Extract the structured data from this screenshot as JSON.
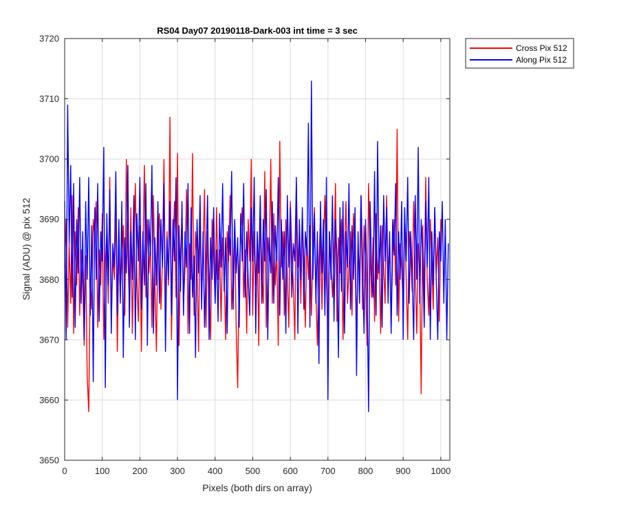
{
  "chart_data": {
    "type": "line",
    "title": "RS04 Day07 20190118-Dark-003 int time = 3 sec",
    "xlabel": "Pixels (both dirs on array)",
    "ylabel": "Signal (ADU) @ pix 512",
    "xlim": [
      0,
      1024
    ],
    "ylim": [
      3650,
      3720
    ],
    "xticks": [
      0,
      100,
      200,
      300,
      400,
      500,
      600,
      700,
      800,
      900,
      1000
    ],
    "yticks": [
      3650,
      3660,
      3670,
      3680,
      3690,
      3700,
      3710,
      3720
    ],
    "grid": true,
    "legend_position": "outside-top-right",
    "series": [
      {
        "name": "Cross Pix 512",
        "color": "#ff0000",
        "x_start": 0,
        "x_step": 4,
        "values": [
          3682,
          3690,
          3672,
          3686,
          3676,
          3694,
          3671,
          3688,
          3679,
          3692,
          3674,
          3685,
          3680,
          3669,
          3684,
          3664,
          3658,
          3680,
          3675,
          3690,
          3687,
          3693,
          3672,
          3685,
          3679,
          3691,
          3670,
          3683,
          3688,
          3676,
          3697,
          3673,
          3684,
          3680,
          3692,
          3668,
          3686,
          3678,
          3683,
          3689,
          3674,
          3700,
          3684,
          3677,
          3692,
          3671,
          3685,
          3696,
          3680,
          3673,
          3689,
          3668,
          3684,
          3699,
          3677,
          3690,
          3681,
          3686,
          3672,
          3694,
          3679,
          3668,
          3687,
          3691,
          3675,
          3683,
          3700,
          3674,
          3688,
          3679,
          3707,
          3670,
          3685,
          3693,
          3677,
          3701,
          3669,
          3684,
          3690,
          3676,
          3682,
          3695,
          3671,
          3686,
          3680,
          3701,
          3674,
          3688,
          3683,
          3668,
          3692,
          3677,
          3685,
          3695,
          3672,
          3688,
          3680,
          3670,
          3690,
          3684,
          3676,
          3692,
          3680,
          3685,
          3673,
          3687,
          3681,
          3670,
          3688,
          3683,
          3694,
          3675,
          3681,
          3689,
          3672,
          3662,
          3682,
          3687,
          3692,
          3677,
          3685,
          3671,
          3690,
          3683,
          3700,
          3674,
          3688,
          3679,
          3686,
          3669,
          3693,
          3681,
          3676,
          3698,
          3672,
          3687,
          3683,
          3700,
          3676,
          3691,
          3679,
          3685,
          3669,
          3703,
          3682,
          3688,
          3674,
          3690,
          3680,
          3672,
          3693,
          3685,
          3679,
          3670,
          3696,
          3682,
          3688,
          3676,
          3691,
          3683,
          3672,
          3687,
          3680,
          3689,
          3674,
          3685,
          3692,
          3678,
          3669,
          3683,
          3690,
          3675,
          3686,
          3694,
          3680,
          3671,
          3688,
          3683,
          3677,
          3684,
          3696,
          3673,
          3687,
          3681,
          3690,
          3670,
          3685,
          3693,
          3676,
          3682,
          3688,
          3674,
          3691,
          3683,
          3672,
          3686,
          3680,
          3694,
          3675,
          3689,
          3681,
          3669,
          3696,
          3684,
          3677,
          3687,
          3673,
          3691,
          3680,
          3685,
          3671,
          3689,
          3682,
          3676,
          3694,
          3680,
          3687,
          3672,
          3684,
          3690,
          3679,
          3705,
          3673,
          3686,
          3682,
          3676,
          3691,
          3680,
          3670,
          3688,
          3684,
          3678,
          3693,
          3682,
          3671,
          3686,
          3681,
          3661,
          3689,
          3677,
          3697,
          3680,
          3674,
          3690,
          3683,
          3675,
          3692,
          3681,
          3687,
          3673,
          3690
        ]
      },
      {
        "name": "Along Pix 512",
        "color": "#0000ff",
        "x_start": 0,
        "x_step": 4,
        "values": [
          3693,
          3670,
          3709,
          3686,
          3699,
          3677,
          3696,
          3672,
          3690,
          3681,
          3697,
          3676,
          3688,
          3670,
          3693,
          3680,
          3697,
          3674,
          3689,
          3663,
          3692,
          3680,
          3696,
          3673,
          3688,
          3683,
          3702,
          3662,
          3691,
          3679,
          3695,
          3671,
          3686,
          3682,
          3698,
          3674,
          3690,
          3676,
          3693,
          3667,
          3687,
          3681,
          3699,
          3672,
          3688,
          3680,
          3694,
          3670,
          3691,
          3683,
          3697,
          3675,
          3688,
          3679,
          3696,
          3669,
          3690,
          3684,
          3699,
          3671,
          3687,
          3679,
          3693,
          3676,
          3690,
          3682,
          3696,
          3668,
          3687,
          3680,
          3693,
          3674,
          3690,
          3683,
          3697,
          3660,
          3689,
          3678,
          3693,
          3674,
          3688,
          3682,
          3696,
          3671,
          3692,
          3677,
          3684,
          3667,
          3690,
          3681,
          3694,
          3675,
          3688,
          3672,
          3683,
          3694,
          3670,
          3687,
          3680,
          3692,
          3676,
          3685,
          3673,
          3691,
          3682,
          3696,
          3678,
          3687,
          3671,
          3689,
          3684,
          3698,
          3675,
          3690,
          3681,
          3687,
          3672,
          3691,
          3683,
          3696,
          3677,
          3688,
          3680,
          3674,
          3692,
          3683,
          3697,
          3671,
          3688,
          3681,
          3694,
          3676,
          3690,
          3683,
          3695,
          3670,
          3687,
          3681,
          3693,
          3676,
          3689,
          3683,
          3697,
          3674,
          3690,
          3680,
          3688,
          3671,
          3694,
          3682,
          3692,
          3677,
          3686,
          3683,
          3697,
          3671,
          3690,
          3680,
          3692,
          3675,
          3688,
          3684,
          3706,
          3672,
          3713,
          3680,
          3691,
          3676,
          3688,
          3666,
          3693,
          3681,
          3690,
          3674,
          3697,
          3660,
          3688,
          3680,
          3694,
          3673,
          3690,
          3684,
          3667,
          3692,
          3678,
          3693,
          3671,
          3688,
          3682,
          3696,
          3675,
          3689,
          3680,
          3692,
          3664,
          3688,
          3676,
          3694,
          3683,
          3671,
          3690,
          3679,
          3658,
          3693,
          3681,
          3677,
          3698,
          3674,
          3703,
          3681,
          3689,
          3672,
          3694,
          3683,
          3692,
          3676,
          3688,
          3671,
          3690,
          3684,
          3696,
          3674,
          3688,
          3680,
          3693,
          3670,
          3692,
          3683,
          3697,
          3676,
          3688,
          3681,
          3670,
          3694,
          3680,
          3702,
          3676,
          3690,
          3684,
          3672,
          3693,
          3682,
          3697,
          3670,
          3688,
          3679,
          3692,
          3680,
          3670,
          3688,
          3683,
          3693,
          3676,
          3690,
          3670,
          3686
        ]
      }
    ]
  }
}
